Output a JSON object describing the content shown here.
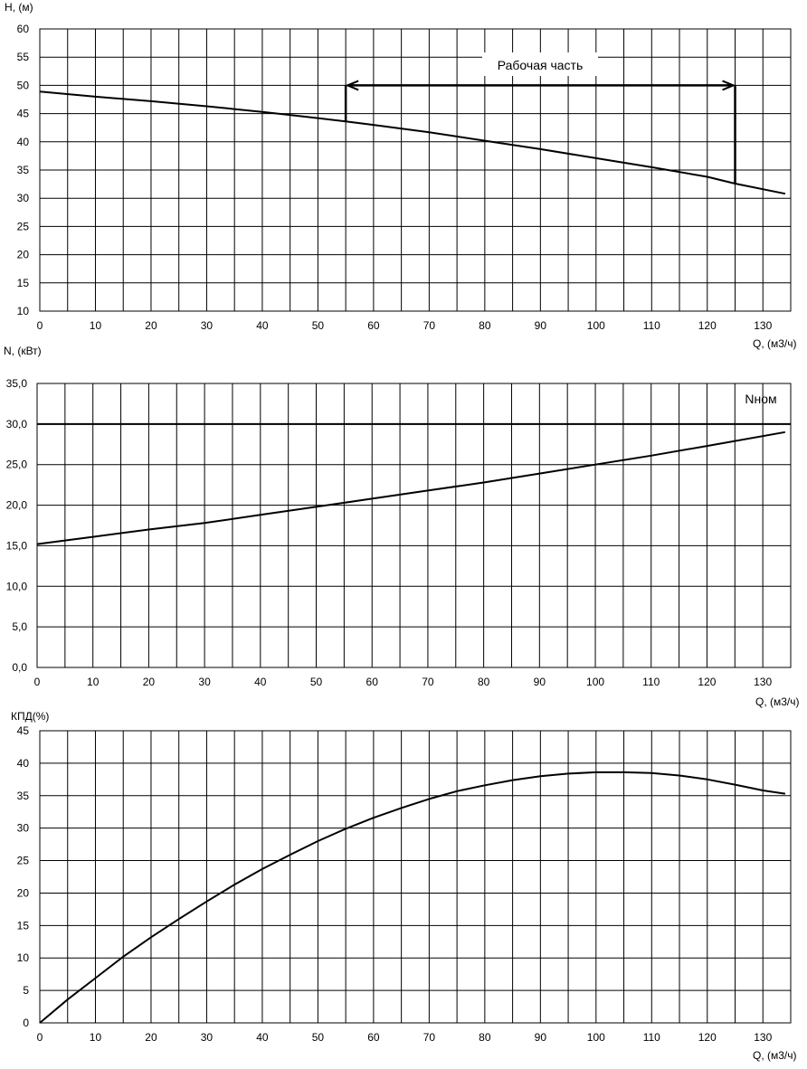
{
  "chart_data": [
    {
      "type": "line",
      "ylabel": "H, (м)",
      "xlabel": "Q, (м3/ч)",
      "xlim": [
        0,
        135
      ],
      "ylim": [
        10,
        60
      ],
      "x_ticks": [
        0,
        10,
        20,
        30,
        40,
        50,
        60,
        70,
        80,
        90,
        100,
        110,
        120,
        130
      ],
      "y_ticks": [
        10,
        15,
        20,
        25,
        30,
        35,
        40,
        45,
        50,
        55,
        60
      ],
      "y_tick_labels": [
        "10",
        "15",
        "20",
        "25",
        "30",
        "35",
        "40",
        "45",
        "50",
        "55",
        "60"
      ],
      "grid": true,
      "grid_x_step": 5,
      "series": [
        {
          "x": [
            0,
            10,
            20,
            30,
            40,
            50,
            55,
            60,
            70,
            80,
            90,
            100,
            110,
            120,
            125,
            134
          ],
          "y": [
            48.9,
            48.0,
            47.2,
            46.3,
            45.3,
            44.2,
            43.6,
            43.0,
            41.7,
            40.2,
            38.7,
            37.1,
            35.5,
            33.8,
            32.6,
            30.8
          ]
        }
      ],
      "annotations": [
        {
          "text": "Рабочая часть",
          "bracket": {
            "x_start": 55,
            "x_end": 125,
            "y_level": 50,
            "y_left_end": 43.6,
            "y_right_end": 32.6
          }
        }
      ]
    },
    {
      "type": "line",
      "ylabel": "N, (кВт)",
      "xlabel": "Q, (м3/ч)",
      "xlim": [
        0,
        135
      ],
      "ylim": [
        0,
        35
      ],
      "x_ticks": [
        0,
        10,
        20,
        30,
        40,
        50,
        60,
        70,
        80,
        90,
        100,
        110,
        120,
        130
      ],
      "y_ticks": [
        0,
        5,
        10,
        15,
        20,
        25,
        30,
        35
      ],
      "y_tick_labels": [
        "0,0",
        "5,0",
        "10,0",
        "15,0",
        "20,0",
        "25,0",
        "30,0",
        "35,0"
      ],
      "grid": true,
      "grid_x_step": 5,
      "series": [
        {
          "x": [
            0,
            10,
            20,
            30,
            40,
            50,
            60,
            70,
            80,
            90,
            100,
            110,
            120,
            134
          ],
          "y": [
            15.2,
            16.1,
            17.0,
            17.8,
            18.8,
            19.8,
            20.8,
            21.8,
            22.8,
            23.9,
            25.0,
            26.1,
            27.3,
            29.0
          ]
        }
      ],
      "reference_line": {
        "y": 30,
        "label": "Nном"
      }
    },
    {
      "type": "line",
      "ylabel": "КПД(%)",
      "xlabel": "Q, (м3/ч)",
      "xlim": [
        0,
        135
      ],
      "ylim": [
        0,
        45
      ],
      "x_ticks": [
        0,
        10,
        20,
        30,
        40,
        50,
        60,
        70,
        80,
        90,
        100,
        110,
        120,
        130
      ],
      "y_ticks": [
        0,
        5,
        10,
        15,
        20,
        25,
        30,
        35,
        40,
        45
      ],
      "y_tick_labels": [
        "0",
        "5",
        "10",
        "15",
        "20",
        "25",
        "30",
        "35",
        "40",
        "45"
      ],
      "grid": true,
      "grid_x_step": 5,
      "series": [
        {
          "x": [
            0,
            5,
            10,
            15,
            20,
            25,
            30,
            35,
            40,
            45,
            50,
            55,
            60,
            65,
            70,
            75,
            80,
            85,
            90,
            95,
            100,
            105,
            110,
            115,
            120,
            125,
            130,
            134
          ],
          "y": [
            0,
            3.6,
            6.9,
            10.2,
            13.2,
            16.0,
            18.7,
            21.3,
            23.7,
            25.9,
            28.0,
            29.9,
            31.6,
            33.1,
            34.5,
            35.7,
            36.6,
            37.4,
            38.0,
            38.4,
            38.6,
            38.6,
            38.5,
            38.1,
            37.5,
            36.7,
            35.8,
            35.3
          ]
        }
      ]
    }
  ]
}
